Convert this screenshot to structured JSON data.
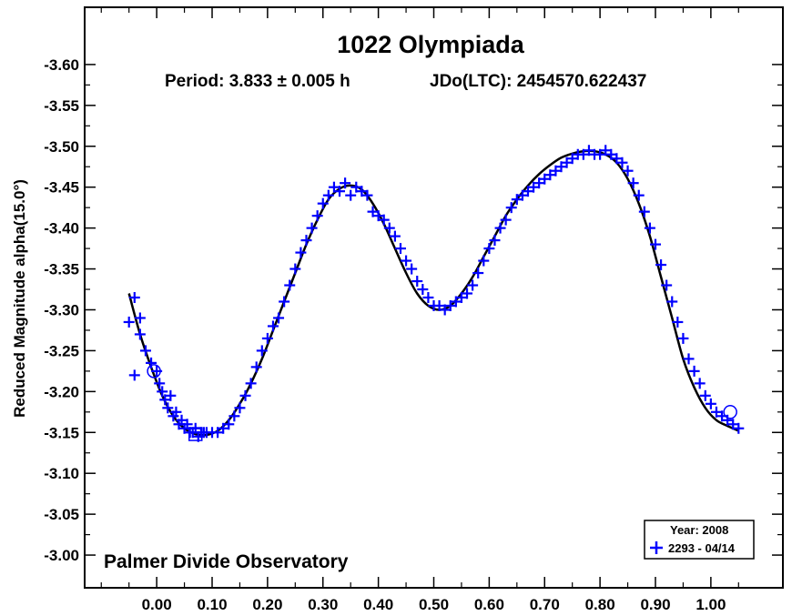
{
  "chart_data": {
    "type": "scatter",
    "title": "1022 Olympiada",
    "subtitle_period": "Period: 3.833 ± 0.005 h",
    "subtitle_epoch": "JDo(LTC): 2454570.622437",
    "ylabel": "Reduced Magnitude alpha(15.0°)",
    "xlabel": "",
    "annotation": "Palmer Divide Observatory",
    "xlim": [
      -0.13,
      1.13
    ],
    "ylim": [
      -3.67,
      -2.96
    ],
    "y_inverted": true,
    "grid": false,
    "x_ticks": [
      0.0,
      0.1,
      0.2,
      0.3,
      0.4,
      0.5,
      0.6,
      0.7,
      0.8,
      0.9,
      1.0
    ],
    "x_tick_labels": [
      "0.00",
      "0.10",
      "0.20",
      "0.30",
      "0.40",
      "0.50",
      "0.60",
      "0.70",
      "0.80",
      "0.90",
      "1.00"
    ],
    "y_ticks": [
      -3.6,
      -3.55,
      -3.5,
      -3.45,
      -3.4,
      -3.35,
      -3.3,
      -3.25,
      -3.2,
      -3.15,
      -3.1,
      -3.05,
      -3.0
    ],
    "y_tick_labels": [
      "-3.60",
      "-3.55",
      "-3.50",
      "-3.45",
      "-3.40",
      "-3.35",
      "-3.30",
      "-3.25",
      "-3.20",
      "-3.15",
      "-3.10",
      "-3.05",
      "-3.00"
    ],
    "legend": {
      "placement": "bottom-right",
      "title": "Year: 2008",
      "entries": [
        {
          "label": "2293 - 04/14",
          "marker": "plus",
          "color": "#0000ff"
        }
      ]
    },
    "series": [
      {
        "name": "2293 - 04/14",
        "marker": "plus",
        "color": "#0000ff",
        "x": [
          -0.05,
          -0.04,
          -0.03,
          -0.04,
          -0.03,
          -0.02,
          -0.01,
          0.0,
          0.005,
          0.01,
          0.015,
          0.02,
          0.025,
          0.03,
          0.035,
          0.04,
          0.045,
          0.05,
          0.055,
          0.06,
          0.065,
          0.07,
          0.075,
          0.08,
          0.085,
          0.09,
          0.1,
          0.11,
          0.12,
          0.13,
          0.14,
          0.15,
          0.16,
          0.17,
          0.18,
          0.19,
          0.2,
          0.21,
          0.22,
          0.23,
          0.24,
          0.25,
          0.26,
          0.27,
          0.28,
          0.29,
          0.3,
          0.31,
          0.32,
          0.33,
          0.34,
          0.35,
          0.36,
          0.37,
          0.38,
          0.39,
          0.4,
          0.41,
          0.42,
          0.43,
          0.44,
          0.45,
          0.46,
          0.47,
          0.48,
          0.49,
          0.5,
          0.51,
          0.52,
          0.53,
          0.54,
          0.55,
          0.56,
          0.57,
          0.58,
          0.59,
          0.6,
          0.61,
          0.62,
          0.63,
          0.64,
          0.65,
          0.66,
          0.67,
          0.68,
          0.69,
          0.7,
          0.71,
          0.72,
          0.73,
          0.74,
          0.75,
          0.76,
          0.77,
          0.78,
          0.79,
          0.8,
          0.81,
          0.82,
          0.83,
          0.84,
          0.85,
          0.86,
          0.87,
          0.88,
          0.89,
          0.9,
          0.91,
          0.92,
          0.93,
          0.94,
          0.95,
          0.96,
          0.97,
          0.98,
          0.99,
          1.0,
          1.01,
          1.02,
          1.03,
          1.04,
          1.05
        ],
        "y": [
          -3.285,
          -3.315,
          -3.27,
          -3.22,
          -3.29,
          -3.25,
          -3.235,
          -3.225,
          -3.21,
          -3.2,
          -3.19,
          -3.18,
          -3.195,
          -3.17,
          -3.175,
          -3.16,
          -3.165,
          -3.155,
          -3.16,
          -3.15,
          -3.15,
          -3.155,
          -3.145,
          -3.15,
          -3.15,
          -3.15,
          -3.15,
          -3.15,
          -3.155,
          -3.16,
          -3.17,
          -3.18,
          -3.195,
          -3.21,
          -3.23,
          -3.25,
          -3.265,
          -3.28,
          -3.29,
          -3.31,
          -3.33,
          -3.35,
          -3.37,
          -3.385,
          -3.4,
          -3.415,
          -3.43,
          -3.44,
          -3.45,
          -3.445,
          -3.455,
          -3.44,
          -3.45,
          -3.445,
          -3.44,
          -3.42,
          -3.415,
          -3.41,
          -3.4,
          -3.39,
          -3.375,
          -3.36,
          -3.35,
          -3.335,
          -3.325,
          -3.315,
          -3.305,
          -3.305,
          -3.3,
          -3.305,
          -3.31,
          -3.315,
          -3.32,
          -3.33,
          -3.345,
          -3.36,
          -3.375,
          -3.385,
          -3.4,
          -3.41,
          -3.425,
          -3.435,
          -3.44,
          -3.445,
          -3.45,
          -3.455,
          -3.46,
          -3.465,
          -3.47,
          -3.475,
          -3.48,
          -3.485,
          -3.49,
          -3.49,
          -3.495,
          -3.49,
          -3.49,
          -3.495,
          -3.49,
          -3.485,
          -3.48,
          -3.47,
          -3.455,
          -3.44,
          -3.42,
          -3.4,
          -3.38,
          -3.355,
          -3.33,
          -3.31,
          -3.285,
          -3.265,
          -3.24,
          -3.225,
          -3.21,
          -3.195,
          -3.185,
          -3.175,
          -3.17,
          -3.165,
          -3.16,
          -3.155
        ]
      }
    ],
    "highlight_markers": [
      {
        "x": -0.005,
        "y": -3.225,
        "shape": "circle"
      },
      {
        "x": 0.07,
        "y": -3.148,
        "shape": "square"
      },
      {
        "x": 1.035,
        "y": -3.175,
        "shape": "circle"
      }
    ],
    "fit_curve": {
      "x": [
        -0.05,
        -0.03,
        -0.01,
        0.01,
        0.03,
        0.05,
        0.07,
        0.09,
        0.11,
        0.13,
        0.15,
        0.17,
        0.19,
        0.21,
        0.23,
        0.25,
        0.27,
        0.29,
        0.31,
        0.33,
        0.35,
        0.37,
        0.39,
        0.41,
        0.43,
        0.45,
        0.47,
        0.49,
        0.51,
        0.53,
        0.55,
        0.57,
        0.59,
        0.61,
        0.63,
        0.65,
        0.67,
        0.69,
        0.71,
        0.73,
        0.75,
        0.77,
        0.79,
        0.81,
        0.83,
        0.85,
        0.87,
        0.89,
        0.91,
        0.93,
        0.95,
        0.97,
        0.99,
        1.01,
        1.03,
        1.05
      ],
      "y": [
        -3.32,
        -3.27,
        -3.23,
        -3.195,
        -3.17,
        -3.155,
        -3.148,
        -3.147,
        -3.152,
        -3.165,
        -3.185,
        -3.21,
        -3.24,
        -3.275,
        -3.31,
        -3.345,
        -3.38,
        -3.41,
        -3.435,
        -3.448,
        -3.452,
        -3.447,
        -3.43,
        -3.405,
        -3.375,
        -3.345,
        -3.32,
        -3.305,
        -3.3,
        -3.305,
        -3.32,
        -3.34,
        -3.365,
        -3.39,
        -3.415,
        -3.435,
        -3.452,
        -3.466,
        -3.477,
        -3.486,
        -3.491,
        -3.494,
        -3.494,
        -3.49,
        -3.48,
        -3.46,
        -3.43,
        -3.39,
        -3.34,
        -3.29,
        -3.24,
        -3.205,
        -3.18,
        -3.165,
        -3.158,
        -3.152
      ]
    }
  }
}
